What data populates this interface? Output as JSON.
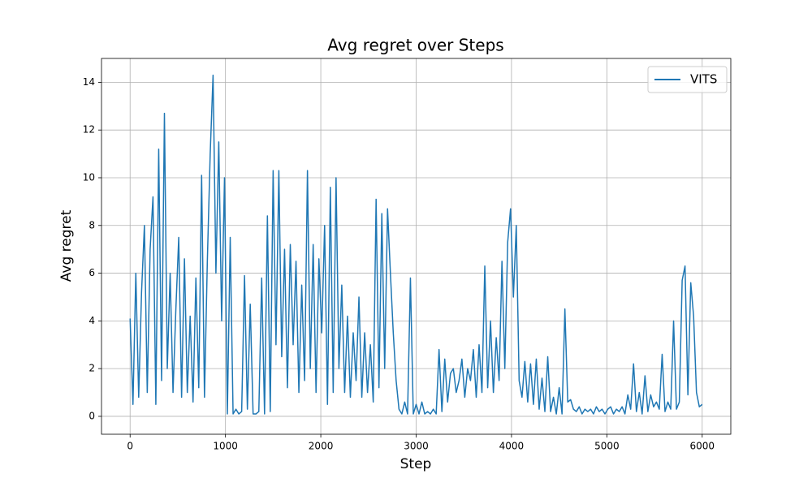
{
  "chart_data": {
    "type": "line",
    "title": "Avg regret over Steps",
    "x_label": "Step",
    "y_label": "Avg regret",
    "x": [
      0,
      30,
      60,
      90,
      120,
      150,
      180,
      210,
      240,
      270,
      300,
      330,
      360,
      390,
      420,
      450,
      480,
      510,
      540,
      570,
      600,
      630,
      660,
      690,
      720,
      750,
      780,
      810,
      840,
      870,
      900,
      930,
      960,
      990,
      1020,
      1050,
      1080,
      1110,
      1140,
      1170,
      1200,
      1230,
      1260,
      1290,
      1320,
      1350,
      1380,
      1410,
      1440,
      1470,
      1500,
      1530,
      1560,
      1590,
      1620,
      1650,
      1680,
      1710,
      1740,
      1770,
      1800,
      1830,
      1860,
      1890,
      1920,
      1950,
      1980,
      2010,
      2040,
      2070,
      2100,
      2130,
      2160,
      2190,
      2220,
      2250,
      2280,
      2310,
      2340,
      2370,
      2400,
      2430,
      2460,
      2490,
      2520,
      2550,
      2580,
      2610,
      2640,
      2670,
      2700,
      2730,
      2760,
      2790,
      2820,
      2850,
      2880,
      2910,
      2940,
      2970,
      3000,
      3030,
      3060,
      3090,
      3120,
      3150,
      3180,
      3210,
      3240,
      3270,
      3300,
      3330,
      3360,
      3390,
      3420,
      3450,
      3480,
      3510,
      3540,
      3570,
      3600,
      3630,
      3660,
      3690,
      3720,
      3750,
      3780,
      3810,
      3840,
      3870,
      3900,
      3930,
      3960,
      3990,
      4020,
      4050,
      4080,
      4110,
      4140,
      4170,
      4200,
      4230,
      4260,
      4290,
      4320,
      4350,
      4380,
      4410,
      4440,
      4470,
      4500,
      4530,
      4560,
      4590,
      4620,
      4650,
      4680,
      4710,
      4740,
      4770,
      4800,
      4830,
      4860,
      4890,
      4920,
      4950,
      4980,
      5010,
      5040,
      5070,
      5100,
      5130,
      5160,
      5190,
      5220,
      5250,
      5280,
      5310,
      5340,
      5370,
      5400,
      5430,
      5460,
      5490,
      5520,
      5550,
      5580,
      5610,
      5640,
      5670,
      5700,
      5730,
      5760,
      5790,
      5820,
      5850,
      5880,
      5910,
      5940,
      5970,
      6000
    ],
    "series": [
      {
        "name": "VITS",
        "color": "#1f77b4",
        "values": [
          4.1,
          0.5,
          6,
          0.8,
          5.2,
          8,
          1,
          7,
          9.2,
          0.5,
          11.2,
          1.5,
          12.7,
          2,
          6,
          1,
          4.5,
          7.5,
          0.8,
          6.6,
          1,
          4.2,
          0.6,
          5.8,
          1.2,
          10.1,
          0.8,
          6.5,
          11,
          14.3,
          6,
          11.5,
          4,
          10,
          0.1,
          7.5,
          0.1,
          0.3,
          0.1,
          0.2,
          5.9,
          0.3,
          4.7,
          0.1,
          0.1,
          0.2,
          5.8,
          0.1,
          8.4,
          0.2,
          10.3,
          3,
          10.3,
          2.5,
          7,
          1.2,
          7.2,
          3,
          6.5,
          1,
          5.5,
          1.5,
          10.3,
          2,
          7.2,
          1,
          6.6,
          3.5,
          8,
          0.5,
          9.6,
          1,
          10,
          2,
          5.5,
          1,
          4.2,
          0.8,
          3.5,
          1.5,
          5,
          0.8,
          3.5,
          1,
          3,
          0.6,
          9.1,
          1.2,
          8.5,
          2,
          8.7,
          6,
          3.5,
          1.5,
          0.3,
          0.1,
          0.6,
          0.1,
          5.8,
          0.1,
          0.5,
          0.1,
          0.6,
          0.1,
          0.2,
          0.1,
          0.3,
          0.1,
          2.8,
          0.2,
          2.4,
          0.6,
          1.8,
          2,
          1,
          1.5,
          2.4,
          0.8,
          2,
          1.5,
          2.8,
          0.8,
          3,
          1,
          6.3,
          1.2,
          4,
          1,
          3.3,
          1.5,
          6.5,
          2,
          7.3,
          8.7,
          5,
          8,
          1.5,
          0.8,
          2.3,
          0.6,
          2.2,
          0.5,
          2.4,
          0.3,
          1.6,
          0.2,
          2.5,
          0.2,
          0.8,
          0.1,
          1.2,
          0.1,
          4.5,
          0.6,
          0.7,
          0.3,
          0.2,
          0.4,
          0.1,
          0.3,
          0.2,
          0.3,
          0.1,
          0.4,
          0.2,
          0.3,
          0.1,
          0.3,
          0.4,
          0.1,
          0.3,
          0.2,
          0.4,
          0.1,
          0.9,
          0.3,
          2.2,
          0.2,
          1,
          0.1,
          1.7,
          0.2,
          0.9,
          0.4,
          0.6,
          0.3,
          2.6,
          0.2,
          0.6,
          0.3,
          4,
          0.3,
          0.6,
          5.7,
          6.3,
          0.9,
          5.6,
          4.2,
          1,
          0.4,
          0.5
        ]
      }
    ],
    "xlim": [
      -300,
      6300
    ],
    "ylim": [
      -0.75,
      15
    ],
    "xticks": [
      0,
      1000,
      2000,
      3000,
      4000,
      5000,
      6000
    ],
    "yticks": [
      0,
      2,
      4,
      6,
      8,
      10,
      12,
      14
    ],
    "grid": true,
    "legend": "upper right"
  }
}
